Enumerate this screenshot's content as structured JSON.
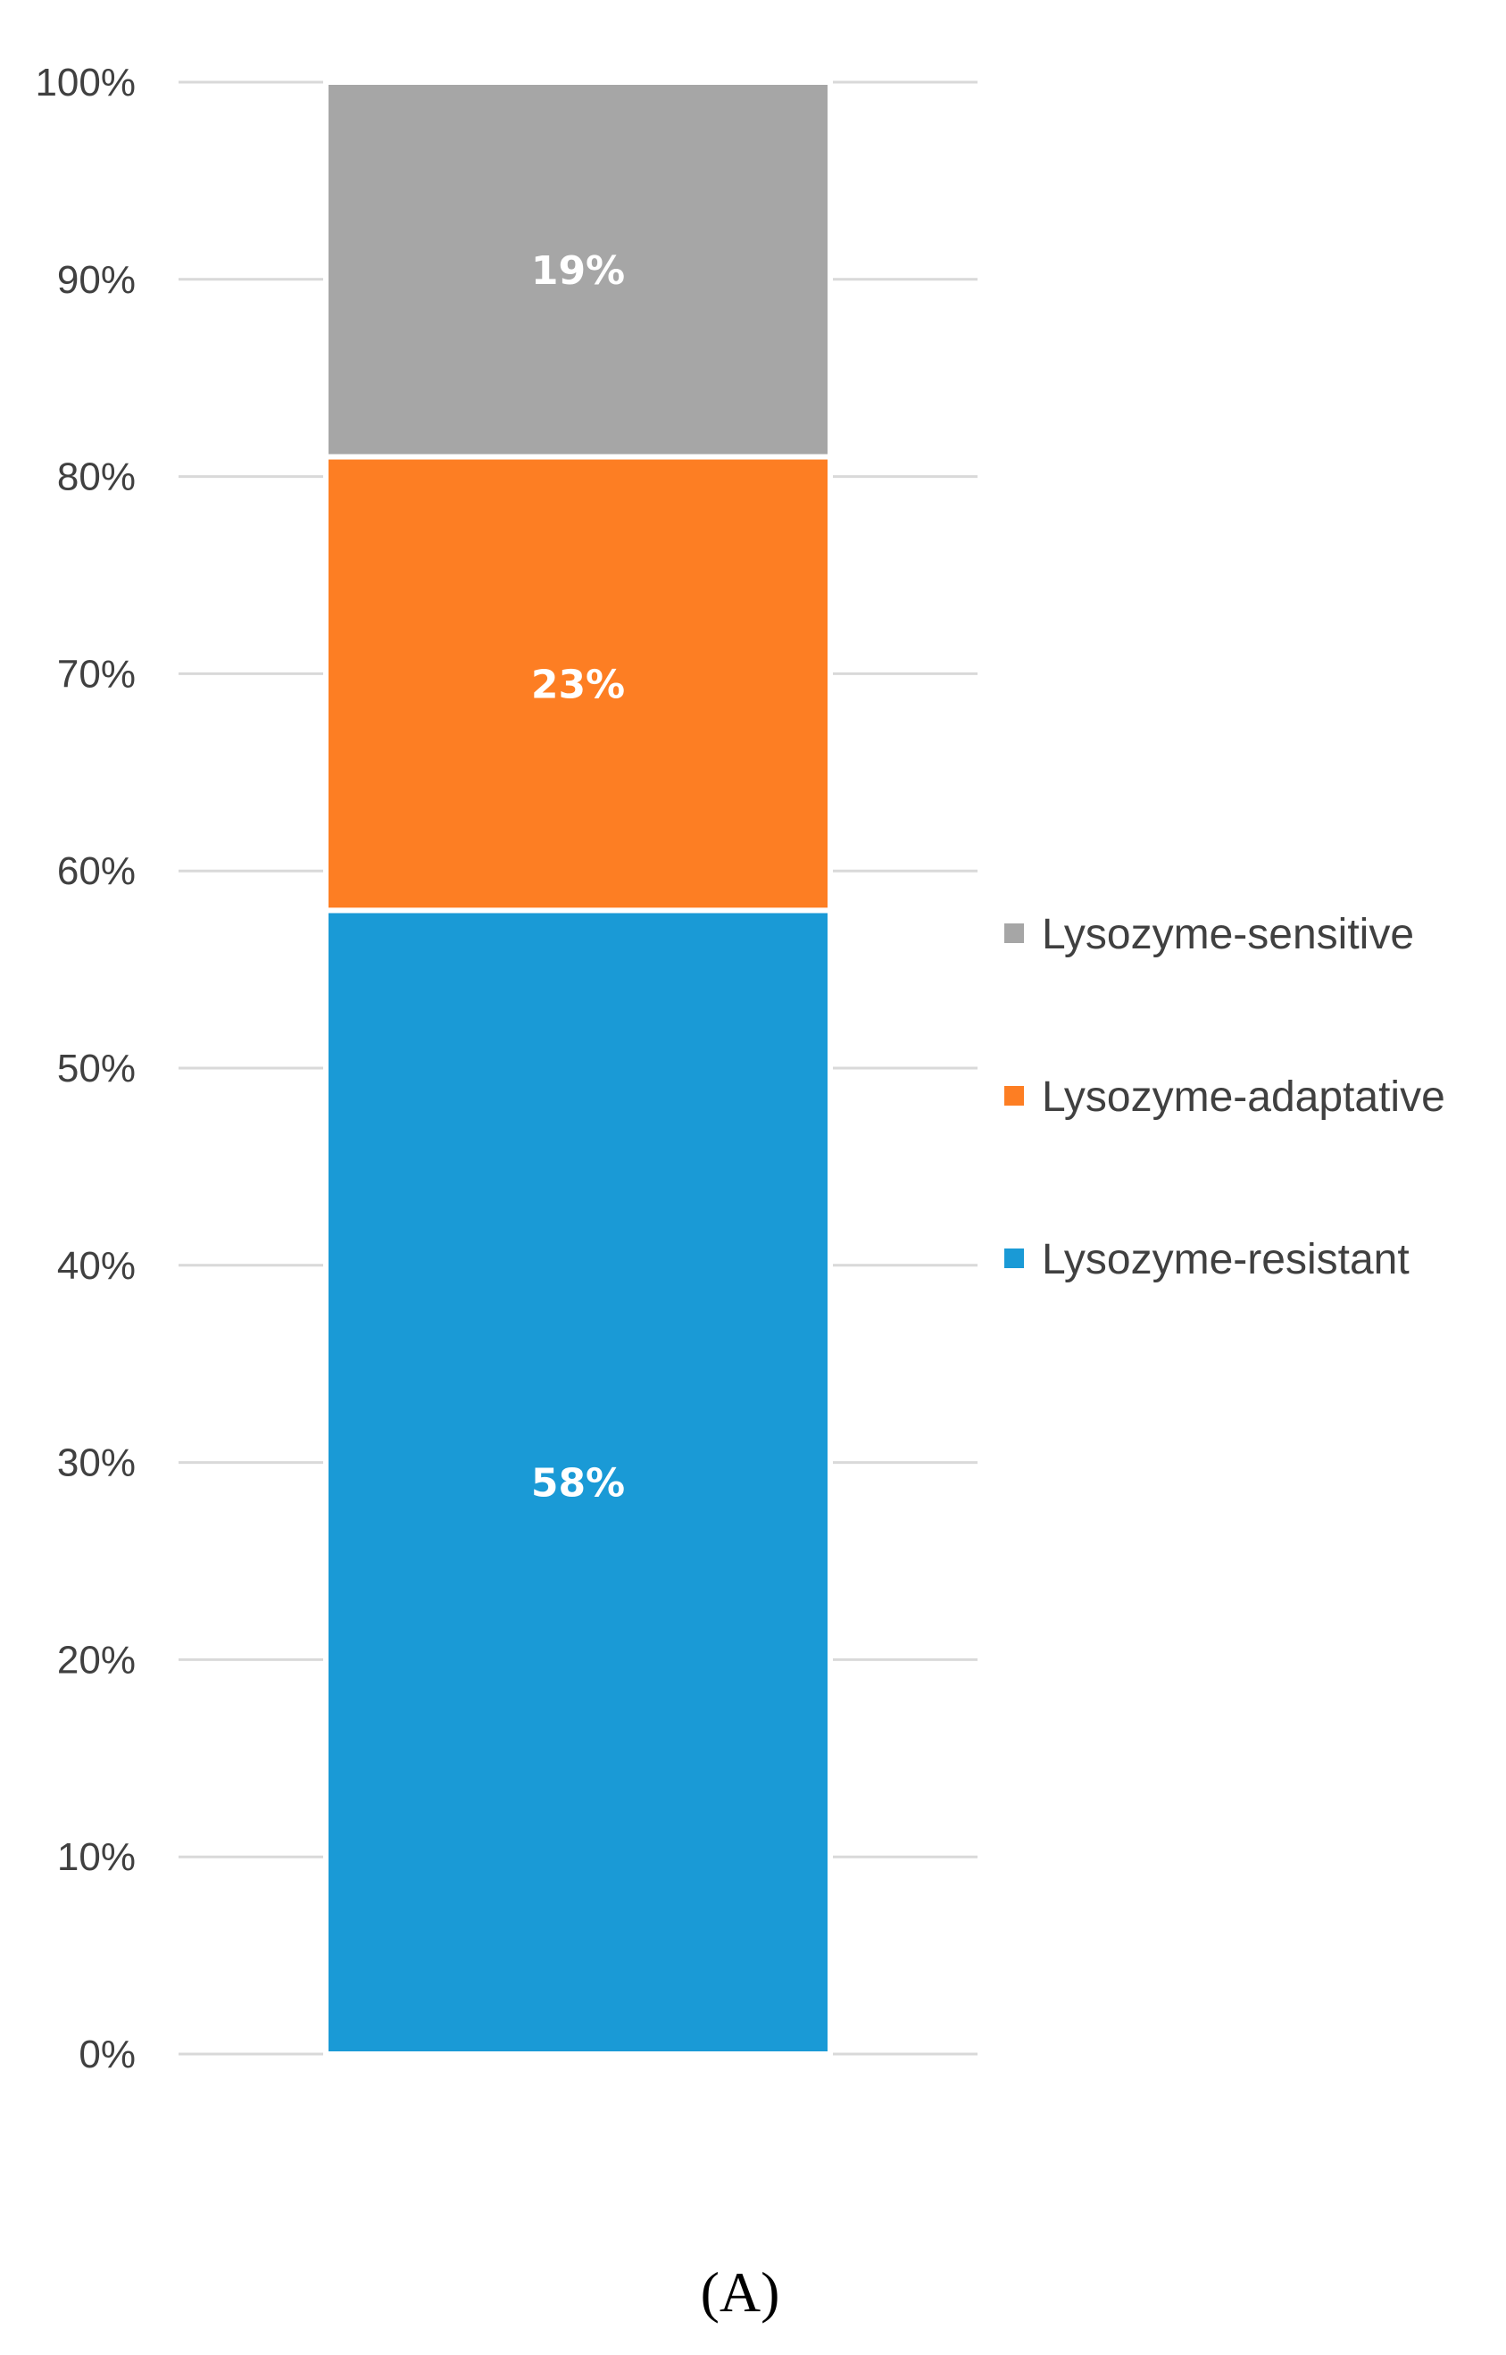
{
  "chart_data": {
    "type": "bar",
    "stacked": true,
    "categories": [
      ""
    ],
    "series": [
      {
        "name": "Lysozyme-resistant",
        "values": [
          58
        ],
        "label": "58%",
        "color": "#1a9ad6"
      },
      {
        "name": "Lysozyme-adaptative",
        "values": [
          23
        ],
        "label": "23%",
        "color": "#fd7e23"
      },
      {
        "name": "Lysozyme-sensitive",
        "values": [
          19
        ],
        "label": "19%",
        "color": "#a6a6a6"
      }
    ],
    "ylim": [
      0,
      100
    ],
    "yticks": [
      "0%",
      "10%",
      "20%",
      "30%",
      "40%",
      "50%",
      "60%",
      "70%",
      "80%",
      "90%",
      "100%"
    ],
    "legend": {
      "position": "right",
      "entries": [
        "Lysozyme-sensitive",
        "Lysozyme-adaptative",
        "Lysozyme-resistant"
      ]
    },
    "grid": true,
    "gridColor": "#d9d9d9"
  },
  "panel_label": "(A)"
}
